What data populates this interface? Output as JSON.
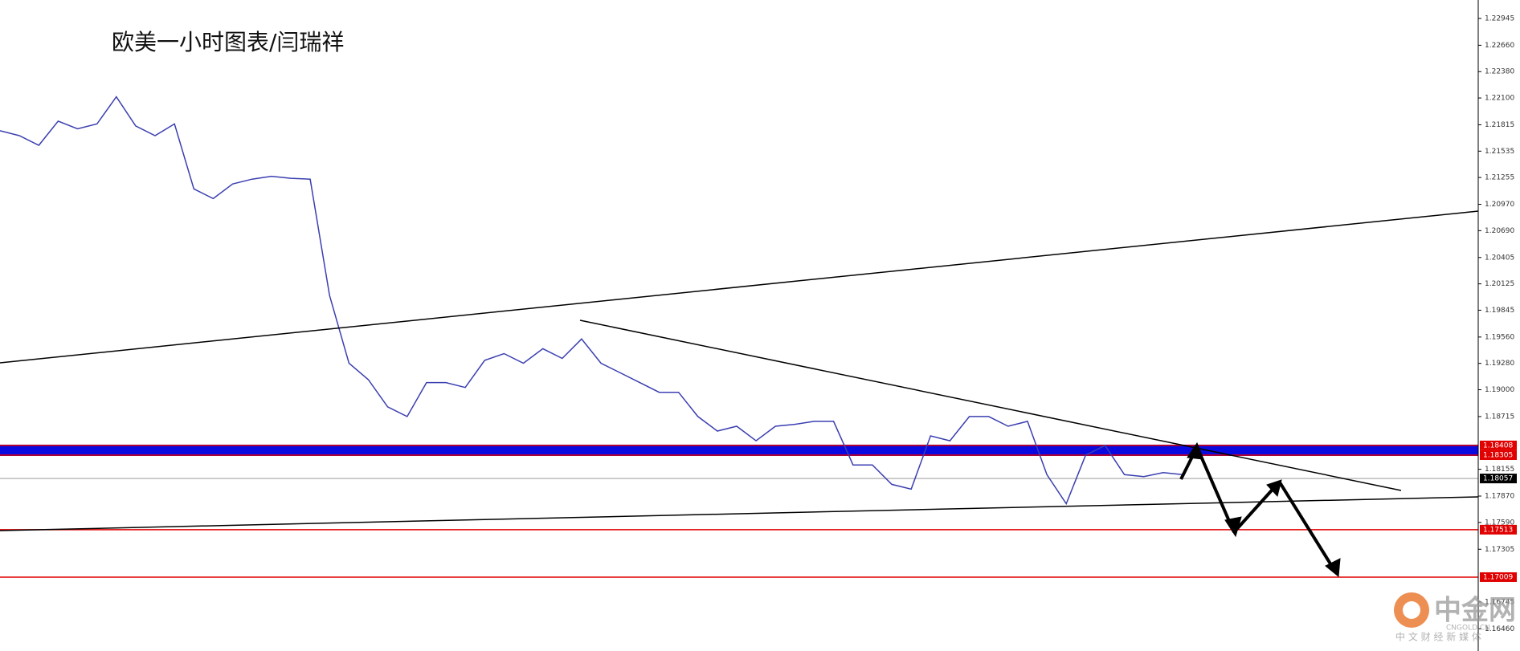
{
  "chart_data": {
    "type": "line",
    "title": "欧美一小时图表/闫瑞祥",
    "series": [
      {
        "color": "#3b3fb0",
        "values": [
          1.21752,
          1.217,
          1.21597,
          1.21854,
          1.21772,
          1.21824,
          1.22112,
          1.21803,
          1.217,
          1.21824,
          1.21134,
          1.21031,
          1.21186,
          1.21237,
          1.21268,
          1.21247,
          1.21237,
          1.20002,
          1.19282,
          1.19107,
          1.18818,
          1.18715,
          1.19076,
          1.19076,
          1.19024,
          1.19312,
          1.19384,
          1.19282,
          1.19436,
          1.19333,
          1.19539,
          1.19282,
          1.19179,
          1.19076,
          1.18973,
          1.18973,
          1.18715,
          1.18561,
          1.18612,
          1.18458,
          1.18612,
          1.18633,
          1.18664,
          1.18664,
          1.18201,
          1.18201,
          1.17995,
          1.17944,
          1.1851,
          1.18458,
          1.18715,
          1.18715,
          1.18612,
          1.18664,
          1.18098,
          1.17789,
          1.18304,
          1.18407,
          1.18098,
          1.18077,
          1.18119,
          1.18098
        ]
      }
    ],
    "ylim": [
      1.16224,
      1.23141
    ],
    "yticks": [
      1.22945,
      {
        "value": 1.2266,
        "label": "1.22660"
      },
      {
        "value": 1.2238,
        "label": "1.22380"
      },
      {
        "value": 1.221,
        "label": "1.22100"
      },
      1.21815,
      1.21535,
      1.21255,
      {
        "value": 1.2097,
        "label": "1.20970"
      },
      {
        "value": 1.2069,
        "label": "1.20690"
      },
      1.20405,
      1.20125,
      1.19845,
      {
        "value": 1.1956,
        "label": "1.19560"
      },
      {
        "value": 1.1928,
        "label": "1.19280"
      },
      {
        "value": 1.19,
        "label": "1.19000"
      },
      1.18715,
      1.18155,
      {
        "value": 1.1787,
        "label": "1.17870"
      },
      {
        "value": 1.1759,
        "label": "1.17590"
      },
      1.17305,
      1.16745,
      {
        "value": 1.1646,
        "label": "1.16460"
      }
    ],
    "levels": [
      {
        "value": 1.18408,
        "color": "#e00000"
      },
      {
        "value": 1.18305,
        "color": "#e00000"
      },
      {
        "value": 1.18057,
        "color": "#000000"
      },
      {
        "value": 1.17513,
        "color": "#e00000"
      },
      {
        "value": 1.17009,
        "color": "#e00000"
      }
    ],
    "band_color": "#0a0ae0"
  },
  "watermark": {
    "brand": "中金网",
    "domain": "CNGOLD.CN",
    "slogan": "中 文 财 经 新 媒 体"
  }
}
